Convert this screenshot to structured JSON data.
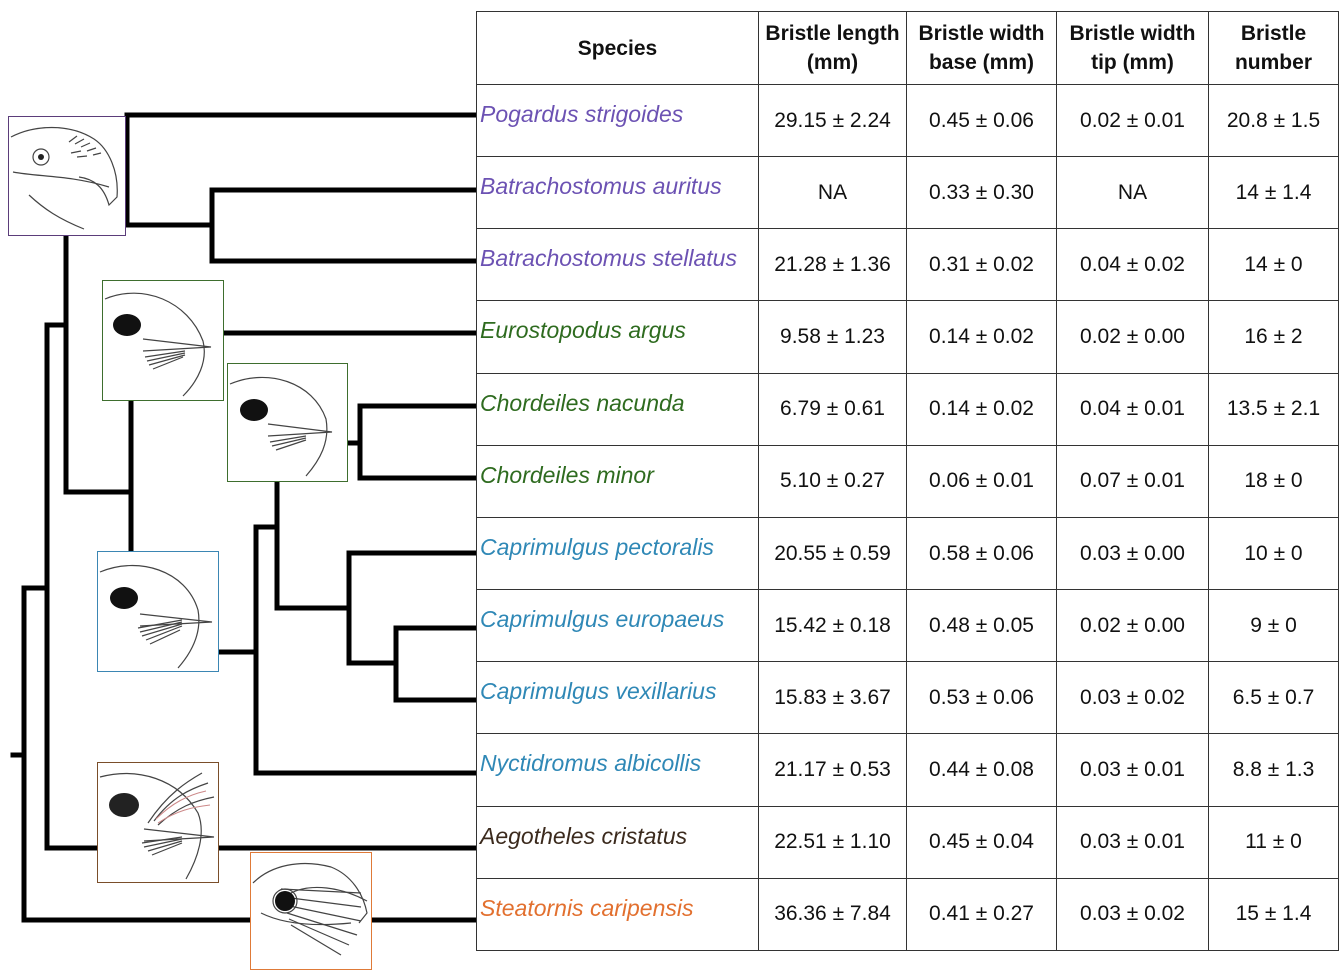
{
  "colors": {
    "purple": "#6c52b3",
    "green": "#2e6b1f",
    "blue": "#2f88b6",
    "brown": "#3b2a1d",
    "orange": "#e2702f",
    "purple_box": "#5b3d7a",
    "green_box": "#3e6e2e",
    "blue_box": "#3b86b3",
    "brown_box": "#7a4e2a",
    "orange_box": "#df7a38"
  },
  "table": {
    "headers": [
      {
        "line1": "Species",
        "line2": ""
      },
      {
        "line1": "Bristle length",
        "line2": "(mm)"
      },
      {
        "line1": "Bristle width",
        "line2": "base (mm)"
      },
      {
        "line1": "Bristle width",
        "line2": "tip (mm)"
      },
      {
        "line1": "Bristle",
        "line2": "number"
      }
    ],
    "rows": [
      {
        "species": "Pogardus strigoides",
        "group": "purple",
        "length": "29.15 ± 2.24",
        "width_base": "0.45 ± 0.06",
        "width_tip": "0.02 ± 0.01",
        "number": "20.8 ± 1.5"
      },
      {
        "species": "Batrachostomus auritus",
        "group": "purple",
        "length": "NA",
        "width_base": "0.33 ± 0.30",
        "width_tip": "NA",
        "number": "14 ± 1.4"
      },
      {
        "species": "Batrachostomus stellatus",
        "group": "purple",
        "length": "21.28 ± 1.36",
        "width_base": "0.31 ± 0.02",
        "width_tip": "0.04 ± 0.02",
        "number": "14 ± 0"
      },
      {
        "species": "Eurostopodus argus",
        "group": "green",
        "length": "9.58 ± 1.23",
        "width_base": "0.14 ± 0.02",
        "width_tip": "0.02 ± 0.00",
        "number": "16 ± 2"
      },
      {
        "species": "Chordeiles nacunda",
        "group": "green",
        "length": "6.79 ± 0.61",
        "width_base": "0.14 ± 0.02",
        "width_tip": "0.04 ± 0.01",
        "number": "13.5 ± 2.1"
      },
      {
        "species": "Chordeiles minor",
        "group": "green",
        "length": "5.10 ± 0.27",
        "width_base": "0.06 ± 0.01",
        "width_tip": "0.07 ± 0.01",
        "number": "18 ± 0"
      },
      {
        "species": "Caprimulgus pectoralis",
        "group": "blue",
        "length": "20.55 ± 0.59",
        "width_base": "0.58 ± 0.06",
        "width_tip": "0.03 ± 0.00",
        "number": "10 ± 0"
      },
      {
        "species": "Caprimulgus europaeus",
        "group": "blue",
        "length": "15.42 ± 0.18",
        "width_base": "0.48 ± 0.05",
        "width_tip": "0.02 ± 0.00",
        "number": "9 ± 0"
      },
      {
        "species": "Caprimulgus vexillarius",
        "group": "blue",
        "length": "15.83 ± 3.67",
        "width_base": "0.53 ± 0.06",
        "width_tip": "0.03 ± 0.02",
        "number": "6.5 ± 0.7"
      },
      {
        "species": "Nyctidromus albicollis",
        "group": "blue",
        "length": "21.17 ± 0.53",
        "width_base": "0.44 ± 0.08",
        "width_tip": "0.03 ± 0.01",
        "number": "8.8 ± 1.3"
      },
      {
        "species": "Aegotheles cristatus",
        "group": "brown",
        "length": "22.51 ± 1.10",
        "width_base": "0.45 ± 0.04",
        "width_tip": "0.03 ± 0.01",
        "number": "11 ± 0"
      },
      {
        "species": "Steatornis caripensis",
        "group": "orange",
        "length": "36.36 ± 7.84",
        "width_base": "0.41 ± 0.27",
        "width_tip": "0.03 ± 0.02",
        "number": "15 ± 1.4"
      }
    ]
  },
  "illustrations": [
    {
      "name": "frogmouth-head-icon",
      "group": "purple_box"
    },
    {
      "name": "eurostopodus-head-icon",
      "group": "green_box"
    },
    {
      "name": "chordeiles-head-icon",
      "group": "green_box"
    },
    {
      "name": "caprimulgus-head-icon",
      "group": "blue_box"
    },
    {
      "name": "owlet-nightjar-head-icon",
      "group": "brown_box"
    },
    {
      "name": "oilbird-head-icon",
      "group": "orange_box"
    }
  ]
}
